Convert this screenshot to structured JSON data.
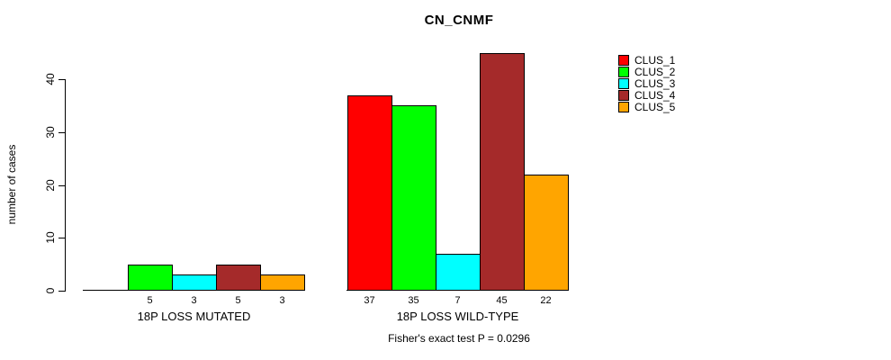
{
  "chart_data": {
    "type": "bar",
    "title": "CN_CNMF",
    "ylabel": "number of cases",
    "xlabel": "",
    "categories": [
      "18P LOSS MUTATED",
      "18P LOSS WILD-TYPE"
    ],
    "series": [
      {
        "name": "CLUS_1",
        "color": "#ff0000",
        "values": [
          0,
          37
        ]
      },
      {
        "name": "CLUS_2",
        "color": "#00ff00",
        "values": [
          5,
          35
        ]
      },
      {
        "name": "CLUS_3",
        "color": "#00ffff",
        "values": [
          3,
          7
        ]
      },
      {
        "name": "CLUS_4",
        "color": "#a52a2a",
        "values": [
          5,
          45
        ]
      },
      {
        "name": "CLUS_5",
        "color": "#ffa500",
        "values": [
          3,
          22
        ]
      }
    ],
    "bar_value_labels": [
      [
        "",
        "5",
        "3",
        "5",
        "3"
      ],
      [
        "37",
        "35",
        "7",
        "45",
        "22"
      ]
    ],
    "yticks": [
      0,
      10,
      20,
      30,
      40
    ],
    "ylim": [
      0,
      46
    ],
    "grid": false,
    "legend_position": "top-right-outside",
    "legend_entries": [
      {
        "label": "CLUS_1",
        "color": "#ff0000"
      },
      {
        "label": "CLUS_2",
        "color": "#00ff00"
      },
      {
        "label": "CLUS_3",
        "color": "#00ffff"
      },
      {
        "label": "CLUS_4",
        "color": "#a52a2a"
      },
      {
        "label": "CLUS_5",
        "color": "#ffa500"
      }
    ],
    "annotation": "Fisher's exact test P = 0.0296",
    "bar_border_color": "#000000",
    "background_color": "#ffffff"
  }
}
